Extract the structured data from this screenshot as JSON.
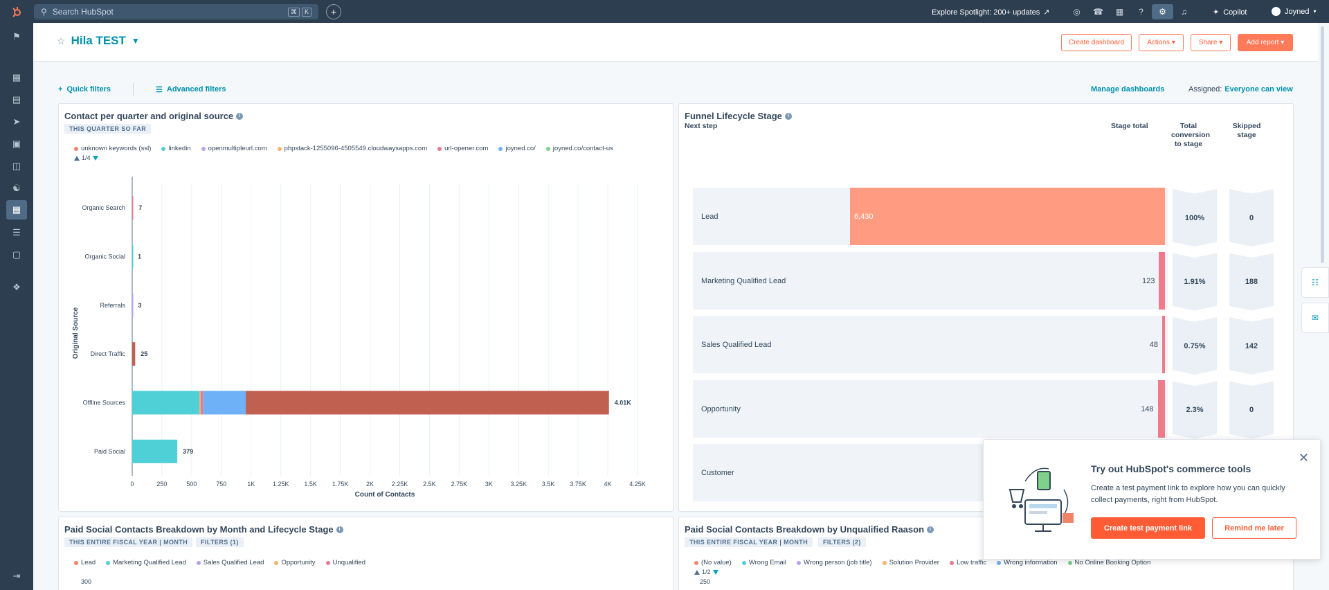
{
  "topnav": {
    "search_placeholder": "Search HubSpot",
    "kbd": [
      "⌘",
      "K"
    ],
    "explore": "Explore Spotlight: 200+ updates",
    "copilot": "Copilot",
    "account": "Joyned"
  },
  "header": {
    "title": "Hila TEST",
    "buttons": {
      "create": "Create dashboard",
      "actions": "Actions",
      "share": "Share",
      "add": "Add report"
    }
  },
  "filters": {
    "quick": "Quick filters",
    "advanced": "Advanced filters",
    "manage": "Manage dashboards",
    "assigned_label": "Assigned:",
    "assigned_value": "Everyone can view"
  },
  "card1": {
    "title": "Contact per quarter and original source",
    "tag": "THIS QUARTER SO FAR",
    "legend": [
      {
        "label": "unknown keywords (ssl)",
        "color": "#f2836b"
      },
      {
        "label": "linkedin",
        "color": "#4fd0d6"
      },
      {
        "label": "openmultipleurl.com",
        "color": "#b4a4e8"
      },
      {
        "label": "phpstack-1255096-4505549.cloudwaysapps.com",
        "color": "#f5b26b"
      },
      {
        "label": "url-opener.com",
        "color": "#e87a8e"
      },
      {
        "label": "joyned.co/",
        "color": "#6eb1f7"
      },
      {
        "label": "joyned.co/contact-us",
        "color": "#7ed08a"
      }
    ],
    "pager": "1/4"
  },
  "chart_data": {
    "type": "bar",
    "orientation": "horizontal",
    "stacked": true,
    "xlabel": "Count of Contacts",
    "ylabel": "Original Source",
    "xlim": [
      0,
      4250
    ],
    "x_ticks": [
      "0",
      "250",
      "500",
      "750",
      "1K",
      "1.25K",
      "1.5K",
      "1.75K",
      "2K",
      "2.25K",
      "2.5K",
      "2.75K",
      "3K",
      "3.25K",
      "3.5K",
      "3.75K",
      "4K",
      "4.25K"
    ],
    "categories": [
      "Organic Search",
      "Organic Social",
      "Referrals",
      "Direct Traffic",
      "Offline Sources",
      "Paid Social"
    ],
    "totals_labels": [
      "7",
      "1",
      "3",
      "25",
      "4.01K",
      "379"
    ],
    "segments": [
      [
        {
          "color": "#e87a8e",
          "value": 7
        }
      ],
      [
        {
          "color": "#4fd0d6",
          "value": 1
        }
      ],
      [
        {
          "color": "#b4a4e8",
          "value": 3
        }
      ],
      [
        {
          "color": "#c06050",
          "value": 25
        }
      ],
      [
        {
          "color": "#4fd0d6",
          "value": 565
        },
        {
          "color": "#f5b26b",
          "value": 10
        },
        {
          "color": "#e87a8e",
          "value": 20
        },
        {
          "color": "#6eb1f7",
          "value": 360
        },
        {
          "color": "#c06050",
          "value": 3055
        }
      ],
      [
        {
          "color": "#4fd0d6",
          "value": 379
        }
      ]
    ]
  },
  "card2": {
    "title": "Funnel Lifecycle Stage",
    "headers": {
      "next": "Next step",
      "total": "Stage total",
      "conv": "Total conversion to stage",
      "skip": "Skipped stage"
    },
    "rows": [
      {
        "label": "Lead",
        "value": "6,430",
        "fraction": 1.0,
        "conv": "100%",
        "skip": "0",
        "color": "#ff9b80"
      },
      {
        "label": "Marketing Qualified Lead",
        "value": "123",
        "fraction": 0.0191,
        "conv": "1.91%",
        "skip": "188",
        "color": "#f07a8a"
      },
      {
        "label": "Sales Qualified Lead",
        "value": "48",
        "fraction": 0.0075,
        "conv": "0.75%",
        "skip": "142",
        "color": "#f07a8a"
      },
      {
        "label": "Opportunity",
        "value": "148",
        "fraction": 0.023,
        "conv": "2.3%",
        "skip": "0",
        "color": "#f07a8a"
      },
      {
        "label": "Customer",
        "value": "",
        "conv": "",
        "skip": ""
      }
    ]
  },
  "card3": {
    "title": "Paid Social Contacts Breakdown by Month and Lifecycle Stage",
    "tag1": "THIS ENTIRE FISCAL YEAR | MONTH",
    "tag2": "FILTERS (1)",
    "legend": [
      {
        "label": "Lead",
        "color": "#f2836b"
      },
      {
        "label": "Marketing Qualified Lead",
        "color": "#4fd0d6"
      },
      {
        "label": "Sales Qualified Lead",
        "color": "#b4a4e8"
      },
      {
        "label": "Opportunity",
        "color": "#f5b26b"
      },
      {
        "label": "Unqualified",
        "color": "#e87a8e"
      }
    ],
    "y_top": "300"
  },
  "card4": {
    "title": "Paid Social Contacts Breakdown by Unqualified Raason",
    "tag1": "THIS ENTIRE FISCAL YEAR | MONTH",
    "tag2": "FILTERS (2)",
    "legend": [
      {
        "label": "(No value)",
        "color": "#f2836b"
      },
      {
        "label": "Wrong Email",
        "color": "#4fd0d6"
      },
      {
        "label": "Wrong person (job title)",
        "color": "#b4a4e8"
      },
      {
        "label": "Solution Provider",
        "color": "#f5b26b"
      },
      {
        "label": "Low traffic",
        "color": "#e87a8e"
      },
      {
        "label": "Wrong information",
        "color": "#6eb1f7"
      },
      {
        "label": "No Online Booking Option",
        "color": "#7ed08a"
      }
    ],
    "pager": "1/2",
    "y_top": "250"
  },
  "popup": {
    "title": "Try out HubSpot's commerce tools",
    "body": "Create a test payment link to explore how you can quickly collect payments, right from HubSpot.",
    "primary": "Create test payment link",
    "secondary": "Remind me later"
  }
}
